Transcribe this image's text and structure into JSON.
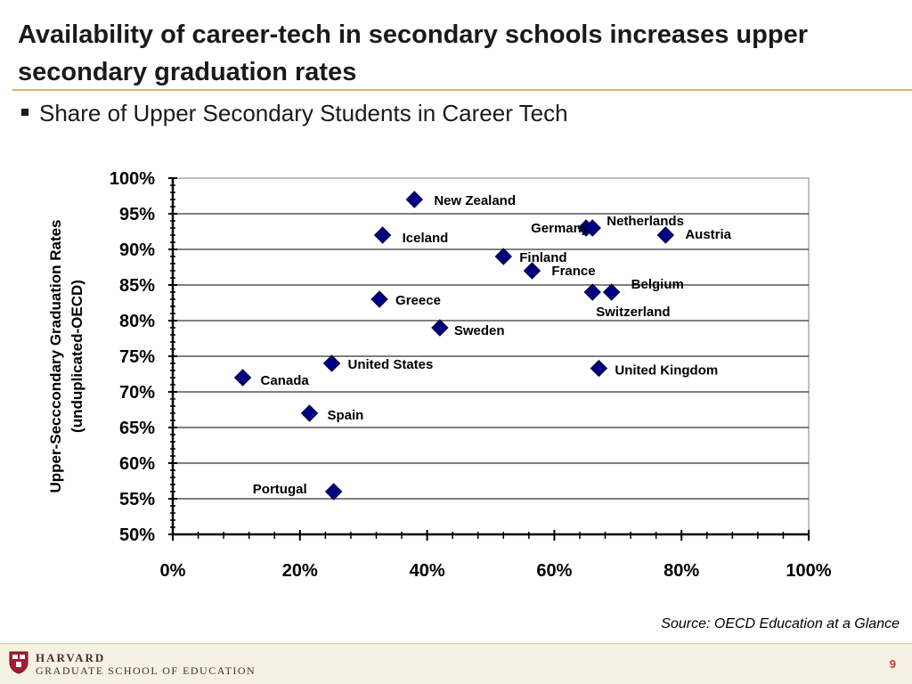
{
  "slide": {
    "title": "Availability of career-tech in secondary schools increases upper secondary graduation rates",
    "bullet": "Share of Upper Secondary Students in Career Tech",
    "source": "Source: OECD Education at a Glance",
    "page_number": "9"
  },
  "footer": {
    "line1": "HARVARD",
    "line2": "GRADUATE SCHOOL OF EDUCATION"
  },
  "colors": {
    "marker": "#000080",
    "accent_rule": "#d9b45a",
    "footer_bg": "#f5f2e3"
  },
  "chart_data": {
    "type": "scatter",
    "title": "",
    "xlabel": "",
    "ylabel": "Upper-Secccondary  Graduation  Rates (unduplicated-OECD)",
    "xlim": [
      0,
      100
    ],
    "ylim": [
      50,
      100
    ],
    "x_ticks": [
      "0%",
      "20%",
      "40%",
      "60%",
      "80%",
      "100%"
    ],
    "y_ticks": [
      "50%",
      "55%",
      "60%",
      "65%",
      "70%",
      "75%",
      "80%",
      "85%",
      "90%",
      "95%",
      "100%"
    ],
    "grid": "horizontal",
    "points": [
      {
        "label": "New Zealand",
        "x": 38,
        "y": 97
      },
      {
        "label": "Iceland",
        "x": 33,
        "y": 92
      },
      {
        "label": "Germany",
        "x": 65,
        "y": 93
      },
      {
        "label": "Netherlands",
        "x": 66,
        "y": 93
      },
      {
        "label": "Austria",
        "x": 77.5,
        "y": 92
      },
      {
        "label": "Finland",
        "x": 52,
        "y": 89
      },
      {
        "label": "France",
        "x": 56.5,
        "y": 87
      },
      {
        "label": "Greece",
        "x": 32.5,
        "y": 83
      },
      {
        "label": "Belgium",
        "x": 69,
        "y": 84
      },
      {
        "label": "Switzerland",
        "x": 66,
        "y": 84
      },
      {
        "label": "Sweden",
        "x": 42,
        "y": 79
      },
      {
        "label": "United States",
        "x": 25,
        "y": 74
      },
      {
        "label": "United Kingdom",
        "x": 67,
        "y": 73.3
      },
      {
        "label": "Canada",
        "x": 11,
        "y": 72
      },
      {
        "label": "Spain",
        "x": 21.5,
        "y": 67
      },
      {
        "label": "Portugal",
        "x": 25.3,
        "y": 56
      }
    ]
  }
}
